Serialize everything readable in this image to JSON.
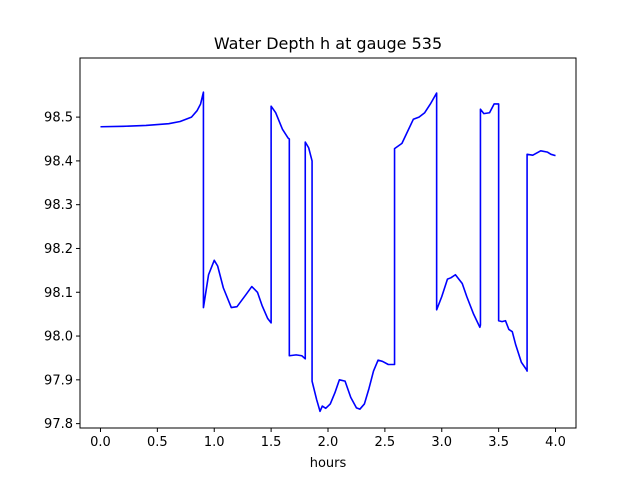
{
  "chart_data": {
    "type": "line",
    "title": "Water Depth h at gauge 535",
    "xlabel": "hours",
    "ylabel": "",
    "xlim": [
      -0.18,
      4.18
    ],
    "ylim": [
      97.79,
      98.635
    ],
    "xticks": [
      0.0,
      0.5,
      1.0,
      1.5,
      2.0,
      2.5,
      3.0,
      3.5,
      4.0
    ],
    "xtick_labels": [
      "0.0",
      "0.5",
      "1.0",
      "1.5",
      "2.0",
      "2.5",
      "3.0",
      "3.5",
      "4.0"
    ],
    "yticks": [
      97.8,
      97.9,
      98.0,
      98.1,
      98.2,
      98.3,
      98.4,
      98.5
    ],
    "ytick_labels": [
      "97.8",
      "97.9",
      "98.0",
      "98.1",
      "98.2",
      "98.3",
      "98.4",
      "98.5"
    ],
    "grid": false,
    "line_color": "#0000ff",
    "series": [
      {
        "x": [
          0.0,
          0.2,
          0.4,
          0.6,
          0.7,
          0.8,
          0.85,
          0.88,
          0.905,
          0.905,
          0.95,
          1.0,
          1.03,
          1.08,
          1.15,
          1.2,
          1.28,
          1.33,
          1.38,
          1.42,
          1.47,
          1.5,
          1.5,
          1.54,
          1.6,
          1.65,
          1.66,
          1.66,
          1.72,
          1.77,
          1.8,
          1.8,
          1.83,
          1.86,
          1.86,
          1.9,
          1.93,
          1.95,
          1.98,
          2.02,
          2.06,
          2.1,
          2.15,
          2.2,
          2.25,
          2.28,
          2.32,
          2.36,
          2.4,
          2.44,
          2.48,
          2.53,
          2.585,
          2.585,
          2.65,
          2.75,
          2.8,
          2.85,
          2.9,
          2.955,
          2.955,
          3.0,
          3.05,
          3.08,
          3.12,
          3.18,
          3.22,
          3.28,
          3.335,
          3.34,
          3.34,
          3.37,
          3.42,
          3.46,
          3.5,
          3.5,
          3.53,
          3.56,
          3.59,
          3.62,
          3.65,
          3.7,
          3.745,
          3.75,
          3.75,
          3.8,
          3.87,
          3.93,
          3.96,
          4.0
        ],
        "y": [
          98.478,
          98.479,
          98.481,
          98.485,
          98.49,
          98.5,
          98.515,
          98.53,
          98.557,
          98.065,
          98.14,
          98.173,
          98.16,
          98.11,
          98.065,
          98.067,
          98.095,
          98.113,
          98.1,
          98.07,
          98.04,
          98.03,
          98.525,
          98.51,
          98.472,
          98.452,
          98.45,
          97.955,
          97.957,
          97.955,
          97.948,
          98.443,
          98.43,
          98.4,
          97.897,
          97.855,
          97.828,
          97.84,
          97.835,
          97.845,
          97.87,
          97.9,
          97.897,
          97.86,
          97.836,
          97.833,
          97.845,
          97.88,
          97.92,
          97.945,
          97.942,
          97.935,
          97.935,
          98.428,
          98.44,
          98.495,
          98.5,
          98.51,
          98.53,
          98.555,
          98.06,
          98.09,
          98.13,
          98.133,
          98.14,
          98.12,
          98.09,
          98.05,
          98.02,
          98.025,
          98.518,
          98.508,
          98.51,
          98.53,
          98.53,
          98.035,
          98.033,
          98.035,
          98.015,
          98.01,
          97.98,
          97.94,
          97.923,
          97.92,
          98.415,
          98.413,
          98.423,
          98.42,
          98.415,
          98.412
        ]
      }
    ]
  }
}
